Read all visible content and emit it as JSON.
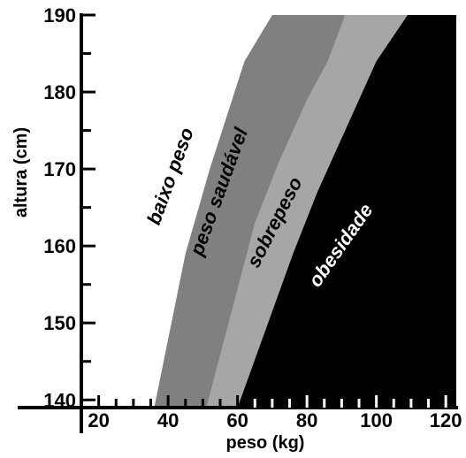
{
  "chart_data": {
    "type": "area",
    "title": "",
    "xlabel": "peso (kg)",
    "ylabel": "altura (cm)",
    "xlim": [
      15,
      122
    ],
    "ylim": [
      139,
      190
    ],
    "x_ticks": [
      20,
      40,
      60,
      80,
      100,
      120
    ],
    "y_ticks": [
      140,
      150,
      160,
      170,
      180,
      190
    ],
    "grid": false,
    "legend": "none",
    "regions": [
      {
        "name": "baixo peso",
        "color": "#ffffff",
        "text_color": "#000000",
        "label_at": {
          "x": 41,
          "y": 169
        },
        "label_angle": -70,
        "boundary": []
      },
      {
        "name": "peso saudável",
        "color": "#808080",
        "text_color": "#000000",
        "label_at": {
          "x": 55,
          "y": 167
        },
        "label_angle": -70,
        "boundary": [
          [
            36,
            139
          ],
          [
            45,
            159
          ],
          [
            52,
            170
          ],
          [
            62,
            184
          ],
          [
            70,
            190
          ]
        ]
      },
      {
        "name": "sobrepeso",
        "color": "#a6a6a6",
        "text_color": "#000000",
        "label_at": {
          "x": 71,
          "y": 163
        },
        "label_angle": -63,
        "boundary": [
          [
            51,
            139
          ],
          [
            58,
            151
          ],
          [
            65,
            163
          ],
          [
            72,
            171
          ],
          [
            80,
            179
          ],
          [
            86,
            184
          ],
          [
            91,
            190
          ]
        ]
      },
      {
        "name": "obesidade",
        "color": "#000000",
        "text_color": "#ffffff",
        "label_at": {
          "x": 90,
          "y": 160
        },
        "label_angle": -55,
        "boundary": [
          [
            60,
            139
          ],
          [
            68,
            149
          ],
          [
            76,
            159
          ],
          [
            83,
            167
          ],
          [
            91,
            175
          ],
          [
            100,
            184
          ],
          [
            109,
            190
          ]
        ]
      }
    ]
  }
}
